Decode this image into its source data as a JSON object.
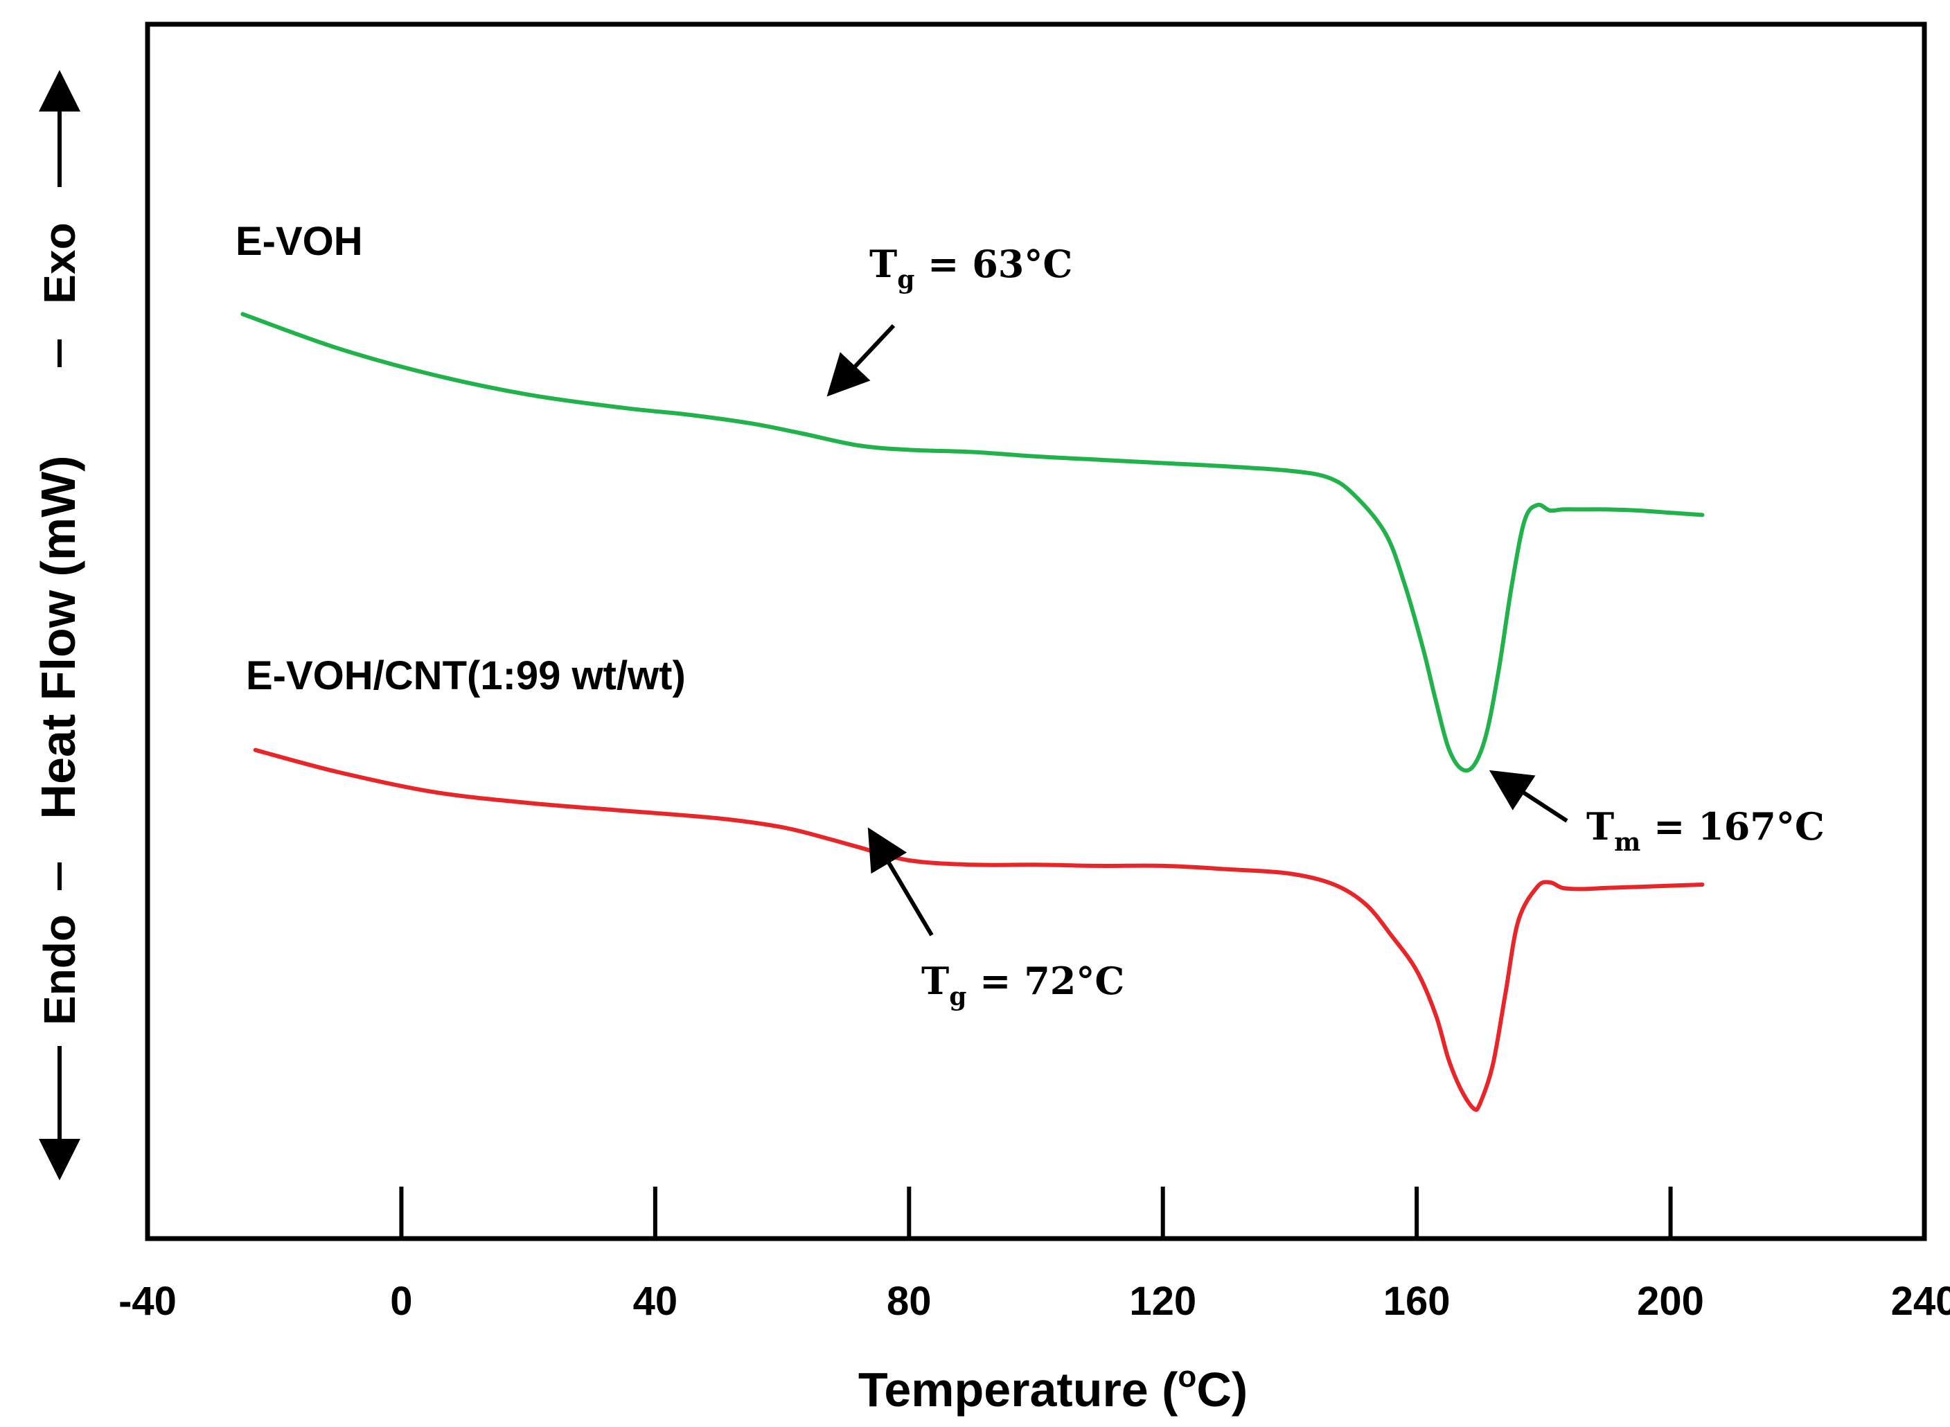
{
  "chart_data": {
    "type": "line",
    "xlabel": "Temperature (",
    "xlabel_sup": "o",
    "xlabel_end": "C)",
    "ylabel": "Heat Flow (mW)",
    "ylabel_endo": "Endo",
    "ylabel_exo": "Exo",
    "xlim": [
      -40,
      240
    ],
    "x_ticks": [
      0,
      40,
      80,
      120,
      160,
      200
    ],
    "x_tick_labels": [
      "-40",
      "0",
      "40",
      "80",
      "120",
      "160",
      "200",
      "240"
    ],
    "x_tick_label_values": [
      -40,
      0,
      40,
      80,
      120,
      160,
      200,
      240
    ],
    "ylim": [
      0,
      10
    ],
    "series": [
      {
        "name": "E-VOH",
        "color": "#22b24c",
        "x": [
          -25,
          -10,
          5,
          20,
          35,
          45,
          55,
          63,
          72,
          80,
          90,
          100,
          110,
          120,
          130,
          140,
          146,
          150,
          155,
          158,
          161,
          163,
          165,
          167,
          169,
          171,
          173,
          175,
          177,
          179,
          181,
          183,
          186,
          190,
          195,
          200,
          205
        ],
        "y": [
          7.75,
          7.44,
          7.2,
          7.02,
          6.9,
          6.84,
          6.76,
          6.67,
          6.56,
          6.52,
          6.5,
          6.46,
          6.43,
          6.4,
          6.37,
          6.33,
          6.27,
          6.12,
          5.77,
          5.32,
          4.72,
          4.25,
          3.82,
          3.63,
          3.66,
          3.95,
          4.55,
          5.3,
          5.88,
          6.02,
          5.97,
          5.98,
          5.98,
          5.98,
          5.97,
          5.95,
          5.93
        ]
      },
      {
        "name": "E-VOH/CNT(1:99 wt/wt)",
        "color": "#e8262a",
        "x": [
          -23,
          -10,
          5,
          20,
          35,
          50,
          60,
          67,
          72,
          80,
          90,
          100,
          110,
          120,
          130,
          140,
          147,
          152,
          156,
          160,
          163,
          165,
          167,
          169,
          170,
          172,
          174,
          176,
          179,
          181,
          183,
          186,
          190,
          195,
          200,
          205
        ],
        "y": [
          3.8,
          3.6,
          3.42,
          3.32,
          3.25,
          3.18,
          3.1,
          3.0,
          2.92,
          2.8,
          2.76,
          2.76,
          2.75,
          2.75,
          2.72,
          2.68,
          2.58,
          2.4,
          2.12,
          1.8,
          1.4,
          1.0,
          0.72,
          0.55,
          0.6,
          0.95,
          1.6,
          2.25,
          2.56,
          2.6,
          2.55,
          2.54,
          2.55,
          2.56,
          2.57,
          2.58
        ]
      }
    ],
    "series_labels": [
      "E-VOH",
      "E-VOH/CNT(1:99 wt/wt)"
    ],
    "annotations": [
      {
        "id": "tg1",
        "main": "T",
        "sub": "g",
        "rest": " = 63°C",
        "target_x": 63,
        "target_y": 6.67
      },
      {
        "id": "tm",
        "main": "T",
        "sub": "m",
        "rest": " = 167°C",
        "target_x": 170,
        "target_y": 3.58
      },
      {
        "id": "tg2",
        "main": "T",
        "sub": "g",
        "rest": " = 72°C",
        "target_x": 73,
        "target_y": 2.85
      }
    ]
  }
}
